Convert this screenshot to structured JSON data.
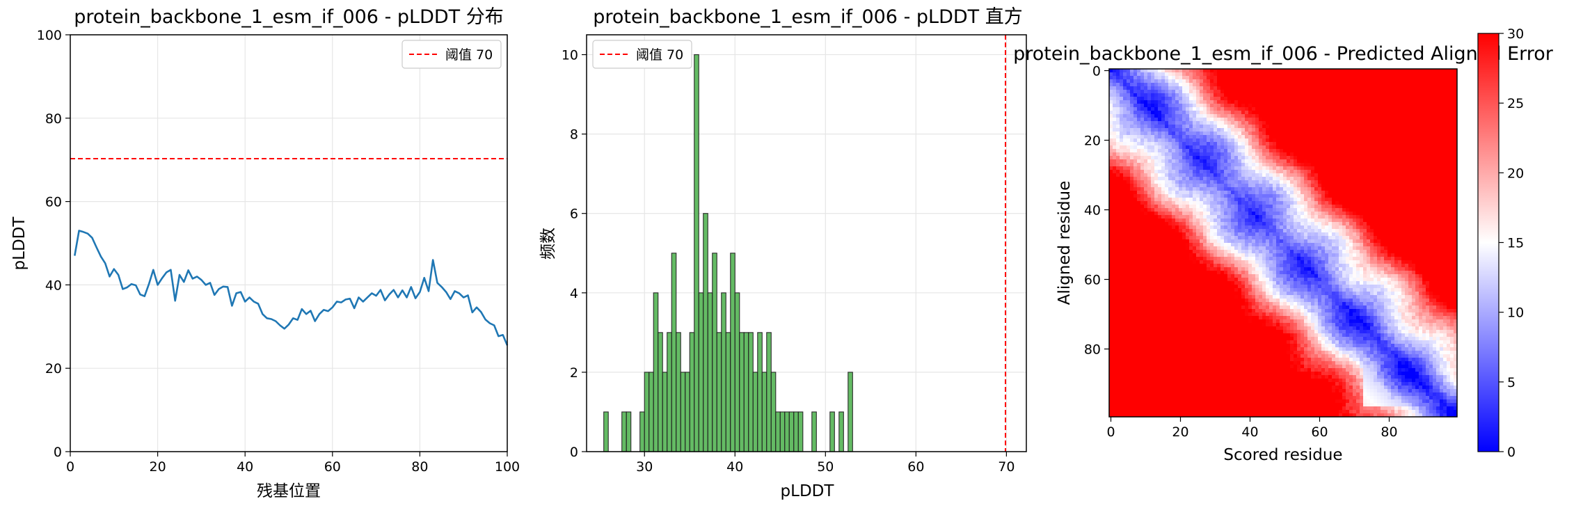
{
  "chart_data": [
    {
      "type": "line",
      "title": "protein_backbone_1_esm_if_006 - pLDDT 分布",
      "xlabel": "残基位置",
      "ylabel": "pLDDT",
      "xlim": [
        0,
        100
      ],
      "ylim": [
        0,
        100
      ],
      "xticks": [
        "0",
        "20",
        "40",
        "60",
        "80",
        "100"
      ],
      "yticks": [
        "0",
        "20",
        "40",
        "60",
        "80",
        "100"
      ],
      "grid": true,
      "legend": {
        "position": "top-right",
        "entries": [
          "阈值 70"
        ]
      },
      "threshold": 70,
      "series": [
        {
          "name": "",
          "color": "#1f77b4",
          "x": [
            1,
            2,
            3,
            4,
            5,
            6,
            7,
            8,
            9,
            10,
            11,
            12,
            13,
            14,
            15,
            16,
            17,
            18,
            19,
            20,
            21,
            22,
            23,
            24,
            25,
            26,
            27,
            28,
            29,
            30,
            31,
            32,
            33,
            34,
            35,
            36,
            37,
            38,
            39,
            40,
            41,
            42,
            43,
            44,
            45,
            46,
            47,
            48,
            49,
            50,
            51,
            52,
            53,
            54,
            55,
            56,
            57,
            58,
            59,
            60,
            61,
            62,
            63,
            64,
            65,
            66,
            67,
            68,
            69,
            70,
            71,
            72,
            73,
            74,
            75,
            76,
            77,
            78,
            79,
            80,
            81,
            82,
            83,
            84,
            85,
            86,
            87,
            88,
            89,
            90,
            91,
            92,
            93,
            94,
            95,
            96,
            97,
            98,
            99,
            100
          ],
          "values": [
            47,
            53,
            52.7,
            52.3,
            51.3,
            49,
            46.8,
            45.2,
            42,
            43.8,
            42.4,
            39,
            39.4,
            40.2,
            39.9,
            37.7,
            37.3,
            40.2,
            43.6,
            40,
            41.6,
            43,
            43.6,
            36.2,
            42.4,
            40.7,
            43.5,
            41.5,
            42,
            41.2,
            40,
            40.5,
            37.6,
            39,
            39.6,
            39.5,
            35,
            38,
            38.3,
            36,
            37,
            36,
            35.5,
            33,
            32,
            31.8,
            31.3,
            30.3,
            29.5,
            30.5,
            32,
            31.6,
            34.2,
            33,
            33.8,
            31.3,
            33,
            34,
            33.7,
            34.6,
            36,
            35.8,
            36.5,
            36.7,
            34.4,
            37,
            36,
            37,
            38,
            37.4,
            38.8,
            36.3,
            37.7,
            38.8,
            37,
            38.7,
            37,
            39.5,
            36.8,
            38.3,
            41.7,
            38.5,
            46,
            40.5,
            39.5,
            38.3,
            36.6,
            38.5,
            38,
            37,
            37.5,
            33.4,
            34.6,
            33.5,
            31.7,
            30.8,
            30.3,
            27.7,
            28,
            25.5
          ]
        }
      ]
    },
    {
      "type": "bar",
      "title": "protein_backbone_1_esm_if_006 - pLDDT 直方",
      "xlabel": "pLDDT",
      "ylabel": "频数",
      "xlim": [
        23.6,
        72.2
      ],
      "ylim": [
        0,
        10.5
      ],
      "xticks": [
        "30",
        "40",
        "50",
        "60",
        "70"
      ],
      "yticks": [
        "0",
        "2",
        "4",
        "6",
        "8",
        "10"
      ],
      "grid": true,
      "legend": {
        "position": "top-left",
        "entries": [
          "阈值 70"
        ]
      },
      "threshold": 70,
      "bar_color": "#5cb85c",
      "bin_width": 0.5,
      "bin_starts": [
        25.5,
        27.5,
        28,
        29.5,
        30,
        30.5,
        31,
        31.5,
        32,
        32.5,
        33,
        33.5,
        34,
        34.5,
        35,
        35.5,
        36,
        36.5,
        37,
        37.5,
        38,
        38.5,
        39,
        39.5,
        40,
        40.5,
        41,
        41.5,
        42,
        42.5,
        43,
        43.5,
        44,
        44.5,
        45,
        45.5,
        46,
        46.5,
        47,
        48.5,
        50.5,
        51.5,
        52.5
      ],
      "values": [
        1,
        1,
        1,
        1,
        2,
        2,
        4,
        3,
        2,
        3,
        5,
        3,
        2,
        2,
        3,
        10,
        4,
        6,
        4,
        5,
        3,
        4,
        3,
        5,
        4,
        3,
        3,
        3,
        2,
        3,
        2,
        3,
        2,
        1,
        1,
        1,
        1,
        1,
        1,
        1,
        1,
        1,
        2
      ]
    },
    {
      "type": "heatmap",
      "title": "protein_backbone_1_esm_if_006 - Predicted Aligned Error",
      "xlabel": "Scored residue",
      "ylabel": "Aligned residue",
      "size": 100,
      "xticks": [
        "0",
        "20",
        "40",
        "60",
        "80"
      ],
      "yticks": [
        "0",
        "20",
        "40",
        "60",
        "80"
      ],
      "colormap": "bwr",
      "vmin": 0,
      "vmax": 30,
      "colorbar_ticks": [
        "0",
        "5",
        "10",
        "15",
        "20",
        "25",
        "30"
      ]
    }
  ]
}
